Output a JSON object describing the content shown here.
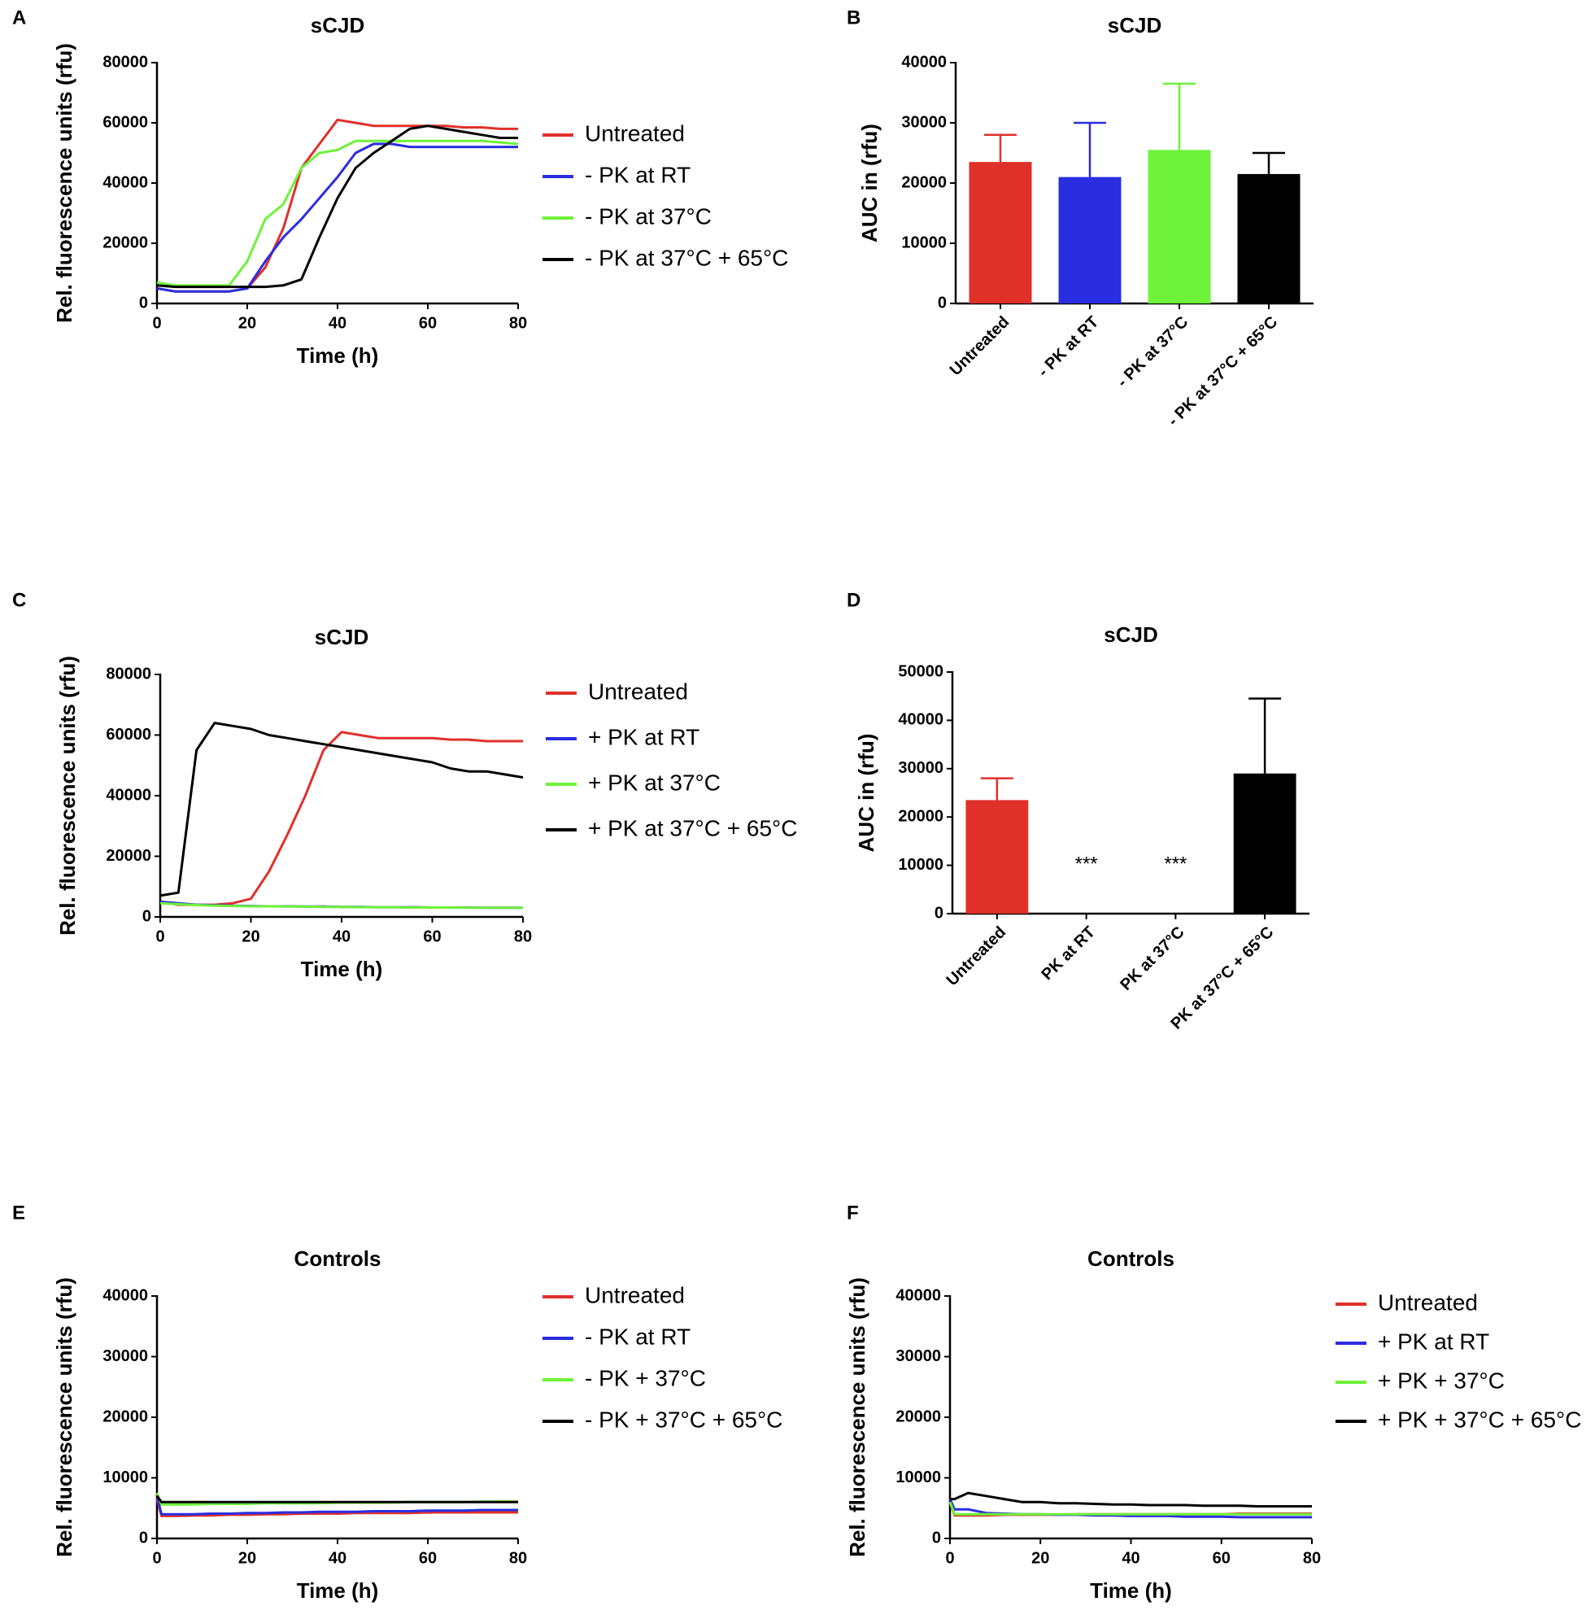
{
  "chart_data": [
    {
      "type": "line",
      "panel": "A",
      "title": "sCJD",
      "xlabel": "Time (h)",
      "ylabel": "Rel. fluorescence units (rfu)",
      "legend": "right",
      "xlim": [
        0,
        80
      ],
      "xticks": [
        0,
        20,
        40,
        60,
        80
      ],
      "ylim": [
        0,
        80000
      ],
      "yticks": [
        0,
        20000,
        40000,
        60000,
        80000
      ],
      "x": [
        0,
        4,
        8,
        12,
        16,
        20,
        24,
        28,
        32,
        36,
        40,
        44,
        48,
        52,
        56,
        60,
        64,
        68,
        72,
        76,
        80
      ],
      "series": [
        {
          "name": "Untreated",
          "color": "#e0302a",
          "values": [
            5000,
            4000,
            4000,
            4000,
            4000,
            5000,
            12000,
            25000,
            45000,
            53000,
            61000,
            60000,
            59000,
            59000,
            59000,
            59000,
            59000,
            58500,
            58500,
            58000,
            58000
          ]
        },
        {
          "name": "- PK at RT",
          "color": "#2a2ee0",
          "values": [
            5000,
            4000,
            4000,
            4000,
            4000,
            5000,
            14000,
            22000,
            28000,
            35000,
            42000,
            50000,
            53000,
            53000,
            52000,
            52000,
            52000,
            52000,
            52000,
            52000,
            52000
          ]
        },
        {
          "name": "- PK at 37°C",
          "color": "#6ef23a",
          "values": [
            7000,
            6000,
            6000,
            6000,
            6000,
            14000,
            28000,
            33000,
            45000,
            50000,
            51000,
            54000,
            54000,
            54000,
            54000,
            54000,
            54000,
            54000,
            54000,
            53500,
            53000
          ]
        },
        {
          "name": "- PK at 37°C + 65°C",
          "color": "#000000",
          "values": [
            6000,
            5500,
            5500,
            5500,
            5500,
            5500,
            5500,
            6000,
            8000,
            22000,
            35000,
            45000,
            50000,
            54000,
            58000,
            59000,
            58000,
            57000,
            56000,
            55000,
            55000
          ]
        }
      ]
    },
    {
      "type": "bar",
      "panel": "B",
      "title": "sCJD",
      "ylabel": "AUC in (rfu)",
      "ylim": [
        0,
        40000
      ],
      "yticks": [
        0,
        10000,
        20000,
        30000,
        40000
      ],
      "categories": [
        "Untreated",
        "- PK at RT",
        "- PK at  37°C",
        "- PK at 37°C + 65°C"
      ],
      "values": [
        23500,
        21000,
        25500,
        21500
      ],
      "errors": [
        4500,
        9000,
        11000,
        3500
      ],
      "colors": [
        "#e0302a",
        "#2a2ee0",
        "#6ef23a",
        "#000000"
      ]
    },
    {
      "type": "line",
      "panel": "C",
      "title": "sCJD",
      "xlabel": "Time (h)",
      "ylabel": "Rel. fluorescence units (rfu)",
      "legend": "right",
      "xlim": [
        0,
        80
      ],
      "xticks": [
        0,
        20,
        40,
        60,
        80
      ],
      "ylim": [
        0,
        80000
      ],
      "yticks": [
        0,
        20000,
        40000,
        60000,
        80000
      ],
      "x": [
        0,
        4,
        8,
        12,
        16,
        20,
        24,
        28,
        32,
        36,
        40,
        44,
        48,
        52,
        56,
        60,
        64,
        68,
        72,
        76,
        80
      ],
      "series": [
        {
          "name": "Untreated",
          "color": "#e0302a",
          "values": [
            5000,
            4000,
            4000,
            4000,
            4500,
            6000,
            15000,
            27000,
            40000,
            55000,
            61000,
            60000,
            59000,
            59000,
            59000,
            59000,
            58500,
            58500,
            58000,
            58000,
            58000
          ]
        },
        {
          "name": "+ PK at RT",
          "color": "#2a2ee0",
          "values": [
            5000,
            4500,
            4000,
            3800,
            3700,
            3600,
            3500,
            3500,
            3400,
            3400,
            3300,
            3300,
            3200,
            3200,
            3200,
            3100,
            3100,
            3100,
            3000,
            3000,
            3000
          ]
        },
        {
          "name": "+ PK at 37°C",
          "color": "#6ef23a",
          "values": [
            4500,
            4200,
            3900,
            3700,
            3600,
            3500,
            3500,
            3400,
            3400,
            3300,
            3300,
            3200,
            3200,
            3200,
            3100,
            3100,
            3100,
            3000,
            3000,
            3000,
            3000
          ]
        },
        {
          "name": "+ PK at 37°C + 65°C",
          "color": "#000000",
          "values": [
            7000,
            8000,
            55000,
            64000,
            63000,
            62000,
            60000,
            59000,
            58000,
            57000,
            56000,
            55000,
            54000,
            53000,
            52000,
            51000,
            49000,
            48000,
            48000,
            47000,
            46000
          ]
        }
      ]
    },
    {
      "type": "bar",
      "panel": "D",
      "title": "sCJD",
      "ylabel": "AUC in (rfu)",
      "ylim": [
        0,
        50000
      ],
      "yticks": [
        0,
        10000,
        20000,
        30000,
        40000,
        50000
      ],
      "categories": [
        "Untreated",
        "PK at RT",
        "PK at  37°C",
        "PK at 37°C + 65°C"
      ],
      "values": [
        23500,
        0,
        0,
        29000
      ],
      "errors": [
        4500,
        0,
        0,
        15500
      ],
      "colors": [
        "#e0302a",
        "#2a2ee0",
        "#6ef23a",
        "#000000"
      ],
      "annotations": [
        {
          "index": 1,
          "text": "***"
        },
        {
          "index": 2,
          "text": "***"
        }
      ]
    },
    {
      "type": "line",
      "panel": "E",
      "title": "Controls",
      "xlabel": "Time (h)",
      "ylabel": "Rel. fluorescence units (rfu)",
      "legend": "right",
      "xlim": [
        0,
        80
      ],
      "xticks": [
        0,
        20,
        40,
        60,
        80
      ],
      "ylim": [
        0,
        40000
      ],
      "yticks": [
        0,
        10000,
        20000,
        30000,
        40000
      ],
      "x": [
        0,
        1,
        4,
        8,
        12,
        16,
        20,
        24,
        28,
        32,
        36,
        40,
        44,
        48,
        52,
        56,
        60,
        64,
        68,
        72,
        76,
        80
      ],
      "series": [
        {
          "name": "Untreated",
          "color": "#e0302a",
          "values": [
            6500,
            3700,
            3700,
            3800,
            3800,
            3900,
            3900,
            4000,
            4000,
            4100,
            4100,
            4100,
            4200,
            4200,
            4200,
            4200,
            4300,
            4300,
            4300,
            4300,
            4300,
            4300
          ]
        },
        {
          "name": "- PK  at RT",
          "color": "#2a2ee0",
          "values": [
            7000,
            4000,
            4000,
            4000,
            4100,
            4100,
            4200,
            4200,
            4300,
            4300,
            4400,
            4400,
            4400,
            4500,
            4500,
            4500,
            4600,
            4600,
            4600,
            4700,
            4700,
            4700
          ]
        },
        {
          "name": "- PK + 37°C",
          "color": "#6ef23a",
          "values": [
            7500,
            5600,
            5600,
            5600,
            5700,
            5700,
            5700,
            5800,
            5800,
            5800,
            5800,
            5900,
            5900,
            5900,
            5900,
            6000,
            6000,
            6000,
            6000,
            6100,
            6100,
            6100
          ]
        },
        {
          "name": "- PK + 37°C + 65°C",
          "color": "#000000",
          "values": [
            7000,
            6000,
            6000,
            6000,
            6000,
            6000,
            6000,
            6000,
            6000,
            6000,
            6000,
            6000,
            6000,
            6000,
            6000,
            6000,
            6000,
            6000,
            6000,
            6000,
            6000,
            6000
          ]
        }
      ]
    },
    {
      "type": "line",
      "panel": "F",
      "title": "Controls",
      "xlabel": "Time (h)",
      "ylabel": "Rel. fluorescence units (rfu)",
      "legend": "right",
      "xlim": [
        0,
        80
      ],
      "xticks": [
        0,
        20,
        40,
        60,
        80
      ],
      "ylim": [
        0,
        40000
      ],
      "yticks": [
        0,
        10000,
        20000,
        30000,
        40000
      ],
      "x": [
        0,
        1,
        4,
        8,
        12,
        16,
        20,
        24,
        28,
        32,
        36,
        40,
        44,
        48,
        52,
        56,
        60,
        64,
        68,
        72,
        76,
        80
      ],
      "series": [
        {
          "name": "Untreated",
          "color": "#e0302a",
          "values": [
            6000,
            3800,
            3800,
            3800,
            3900,
            3900,
            3900,
            3900,
            4000,
            4000,
            4000,
            4000,
            4000,
            4000,
            4000,
            4000,
            4000,
            4100,
            4100,
            4100,
            4100,
            4100
          ]
        },
        {
          "name": "+ PK  at RT",
          "color": "#2a2ee0",
          "values": [
            6500,
            4800,
            4800,
            4200,
            4100,
            4000,
            4000,
            3900,
            3900,
            3800,
            3800,
            3700,
            3700,
            3700,
            3600,
            3600,
            3600,
            3500,
            3500,
            3500,
            3500,
            3500
          ]
        },
        {
          "name": "+ PK + 37°C",
          "color": "#6ef23a",
          "values": [
            6000,
            4000,
            4000,
            4000,
            4000,
            4000,
            4000,
            4000,
            4000,
            4000,
            4000,
            4000,
            4000,
            4000,
            4000,
            4000,
            4000,
            4000,
            4000,
            4000,
            4000,
            4000
          ]
        },
        {
          "name": "+ PK + 37°C + 65°C",
          "color": "#000000",
          "values": [
            6500,
            6500,
            7500,
            7000,
            6500,
            6000,
            6000,
            5800,
            5800,
            5700,
            5600,
            5600,
            5500,
            5500,
            5500,
            5400,
            5400,
            5400,
            5300,
            5300,
            5300,
            5300
          ]
        }
      ]
    }
  ]
}
